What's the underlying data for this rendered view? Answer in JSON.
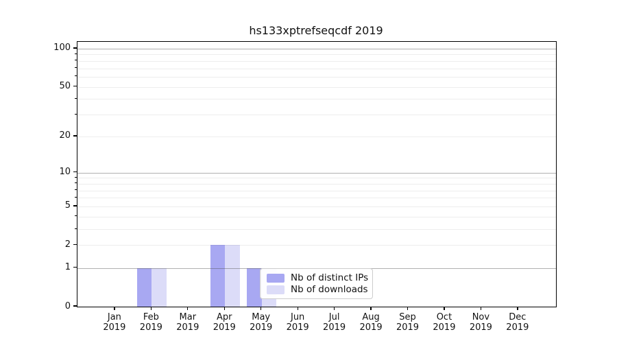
{
  "chart_data": {
    "type": "bar",
    "title": "hs133xptrefseqcdf 2019",
    "year_label": "2019",
    "categories": [
      "Jan",
      "Feb",
      "Mar",
      "Apr",
      "May",
      "Jun",
      "Jul",
      "Aug",
      "Sep",
      "Oct",
      "Nov",
      "Dec"
    ],
    "series": [
      {
        "name": "Nb of distinct IPs",
        "color": "#a8a8f2",
        "values": [
          0,
          1,
          0,
          2,
          1,
          0,
          0,
          0,
          0,
          0,
          0,
          0
        ]
      },
      {
        "name": "Nb of downloads",
        "color": "#dcdcf8",
        "values": [
          0,
          1,
          0,
          2,
          1,
          0,
          0,
          0,
          0,
          0,
          0,
          0
        ]
      }
    ],
    "y_scale": "log1p",
    "ylim": [
      0,
      113
    ],
    "y_ticks_labeled": [
      0,
      1,
      2,
      5,
      10,
      20,
      50,
      100
    ],
    "y_ticks_minor": [
      3,
      4,
      6,
      7,
      8,
      9,
      30,
      40,
      60,
      70,
      80,
      90
    ],
    "grid": {
      "major_values": [
        1,
        10,
        100
      ],
      "major_color": "rgba(80,80,80,0.45)",
      "minor_color": "rgba(0,0,0,0.07)"
    },
    "legend_position": "lower right inside"
  }
}
